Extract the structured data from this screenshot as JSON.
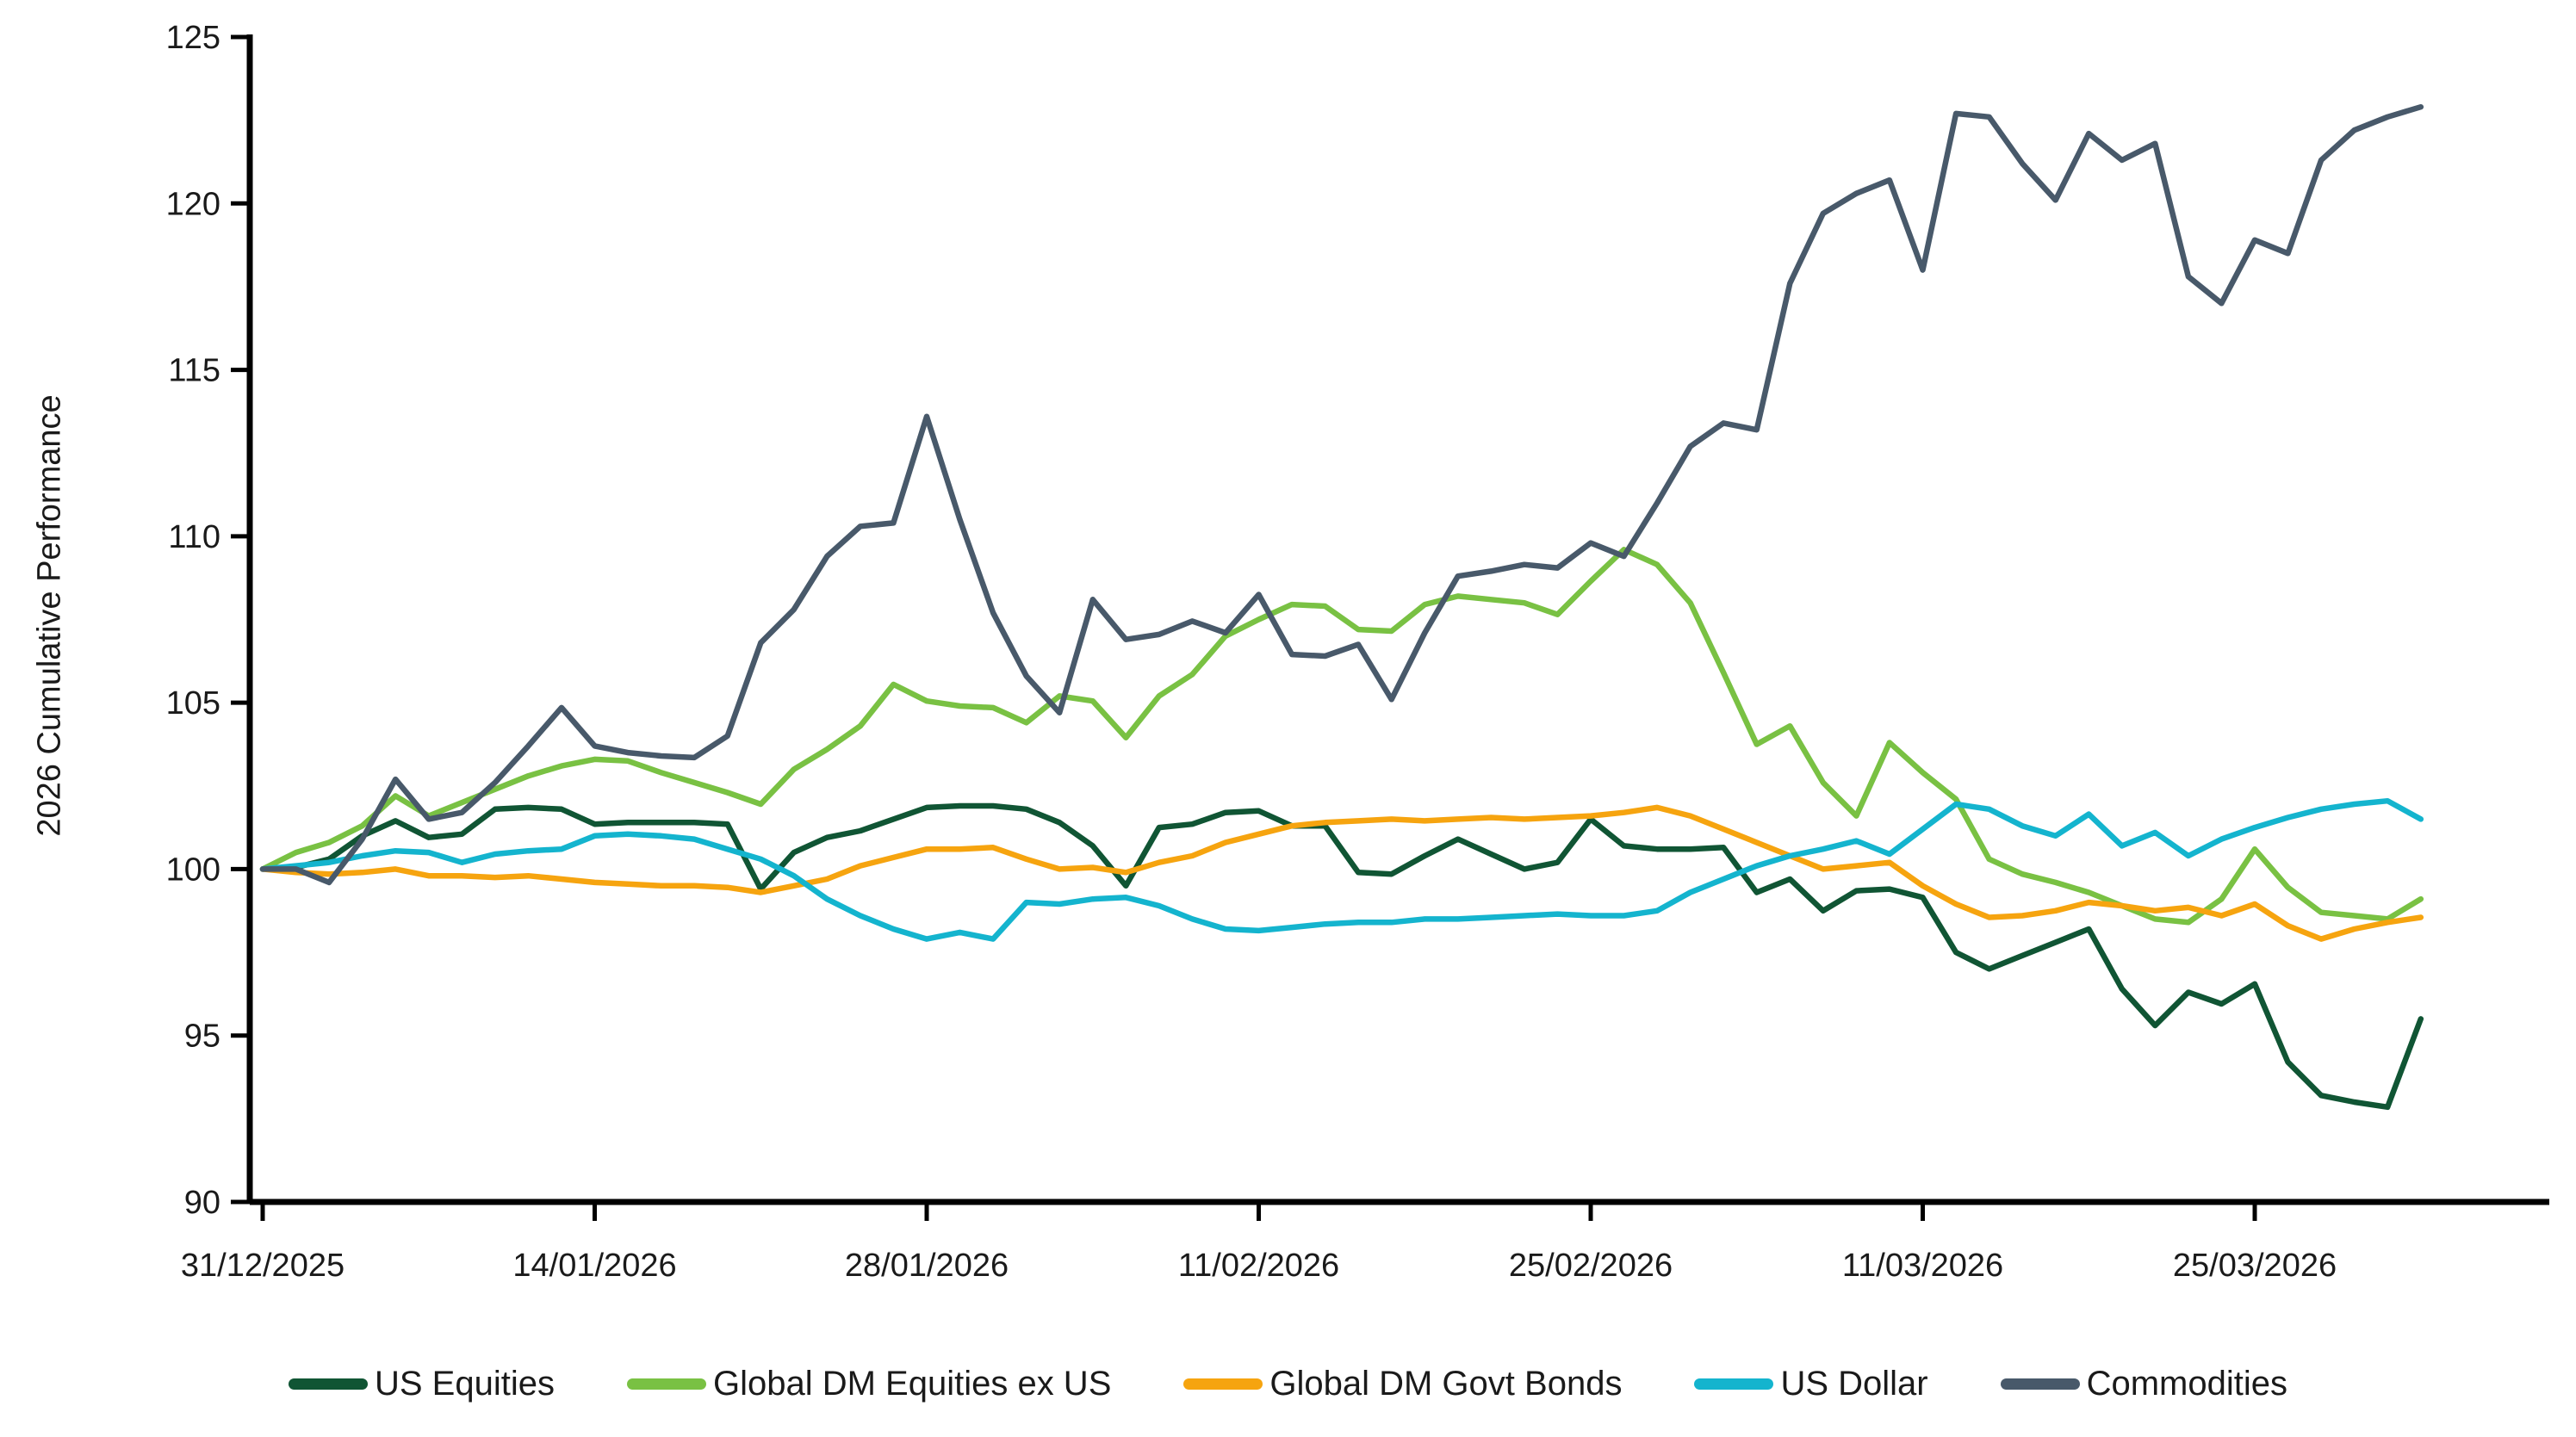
{
  "page": {
    "background": "#ffffff"
  },
  "chart_data": {
    "type": "line",
    "title": "",
    "xlabel": "",
    "ylabel": "2026 Cumulative Performance",
    "ylim": [
      90,
      125
    ],
    "yticks": [
      90,
      95,
      100,
      105,
      110,
      115,
      120,
      125
    ],
    "xtick_labels": [
      "31/12/2025",
      "14/01/2026",
      "28/01/2026",
      "11/02/2026",
      "25/02/2026",
      "11/03/2026",
      "25/03/2026"
    ],
    "xtick_indices": [
      0,
      10,
      20,
      30,
      40,
      50,
      60
    ],
    "grid": false,
    "legend_position": "bottom",
    "axis_color": "#000000",
    "dates": [
      "31/12/2025",
      "01/01/2026",
      "02/01/2026",
      "05/01/2026",
      "06/01/2026",
      "07/01/2026",
      "08/01/2026",
      "09/01/2026",
      "12/01/2026",
      "13/01/2026",
      "14/01/2026",
      "15/01/2026",
      "16/01/2026",
      "19/01/2026",
      "20/01/2026",
      "21/01/2026",
      "22/01/2026",
      "23/01/2026",
      "26/01/2026",
      "27/01/2026",
      "28/01/2026",
      "29/01/2026",
      "30/01/2026",
      "02/02/2026",
      "03/02/2026",
      "04/02/2026",
      "05/02/2026",
      "06/02/2026",
      "09/02/2026",
      "10/02/2026",
      "11/02/2026",
      "12/02/2026",
      "13/02/2026",
      "16/02/2026",
      "17/02/2026",
      "18/02/2026",
      "19/02/2026",
      "20/02/2026",
      "23/02/2026",
      "24/02/2026",
      "25/02/2026",
      "26/02/2026",
      "27/02/2026",
      "02/03/2026",
      "03/03/2026",
      "04/03/2026",
      "05/03/2026",
      "06/03/2026",
      "09/03/2026",
      "10/03/2026",
      "11/03/2026",
      "12/03/2026",
      "13/03/2026",
      "16/03/2026",
      "17/03/2026",
      "18/03/2026",
      "19/03/2026",
      "20/03/2026",
      "23/03/2026",
      "24/03/2026",
      "25/03/2026",
      "26/03/2026",
      "27/03/2026",
      "30/03/2026",
      "31/03/2026",
      "01/04/2026"
    ],
    "series": [
      {
        "name": "US Equities",
        "color": "#105534",
        "values": [
          100,
          100.05,
          100.3,
          101,
          101.45,
          100.95,
          101.05,
          101.8,
          101.85,
          101.8,
          101.35,
          101.4,
          101.4,
          101.4,
          101.35,
          99.4,
          100.5,
          100.95,
          101.15,
          101.5,
          101.85,
          101.9,
          101.9,
          101.8,
          101.4,
          100.7,
          99.5,
          101.25,
          101.35,
          101.7,
          101.75,
          101.3,
          101.3,
          99.9,
          99.85,
          100.4,
          100.9,
          100.45,
          100,
          100.2,
          101.5,
          100.7,
          100.6,
          100.6,
          100.65,
          99.3,
          99.7,
          98.75,
          99.35,
          99.4,
          99.15,
          97.5,
          97,
          97.4,
          97.8,
          98.2,
          96.4,
          95.3,
          96.3,
          95.95,
          96.55,
          94.2,
          93.2,
          93,
          92.85,
          95.5
        ]
      },
      {
        "name": "Global DM Equities ex US",
        "color": "#79C143",
        "values": [
          100,
          100.5,
          100.8,
          101.3,
          102.2,
          101.6,
          102,
          102.4,
          102.8,
          103.1,
          103.3,
          103.25,
          102.9,
          102.6,
          102.3,
          101.95,
          103,
          103.6,
          104.3,
          105.55,
          105.05,
          104.9,
          104.85,
          104.4,
          105.2,
          105.05,
          103.95,
          105.2,
          105.85,
          107,
          107.5,
          107.95,
          107.9,
          107.2,
          107.15,
          107.95,
          108.2,
          108.1,
          108,
          107.65,
          108.65,
          109.6,
          109.15,
          108,
          105.9,
          103.75,
          104.3,
          102.6,
          101.6,
          103.8,
          102.9,
          102.1,
          100.3,
          99.85,
          99.6,
          99.3,
          98.9,
          98.5,
          98.4,
          99.1,
          100.6,
          99.45,
          98.7,
          98.6,
          98.5,
          99.1
        ]
      },
      {
        "name": "Global DM Govt Bonds",
        "color": "#F6A40F",
        "values": [
          100,
          99.9,
          99.85,
          99.9,
          100,
          99.8,
          99.8,
          99.75,
          99.8,
          99.7,
          99.6,
          99.55,
          99.5,
          99.5,
          99.45,
          99.3,
          99.5,
          99.7,
          100.1,
          100.35,
          100.6,
          100.6,
          100.65,
          100.3,
          100,
          100.05,
          99.9,
          100.2,
          100.4,
          100.8,
          101.05,
          101.3,
          101.4,
          101.45,
          101.5,
          101.45,
          101.5,
          101.55,
          101.5,
          101.55,
          101.6,
          101.7,
          101.85,
          101.6,
          101.2,
          100.8,
          100.4,
          100,
          100.1,
          100.2,
          99.5,
          98.95,
          98.55,
          98.6,
          98.75,
          99,
          98.9,
          98.75,
          98.85,
          98.6,
          98.95,
          98.3,
          97.9,
          98.2,
          98.4,
          98.55
        ]
      },
      {
        "name": "US Dollar",
        "color": "#14B4CE",
        "values": [
          100,
          100.1,
          100.2,
          100.4,
          100.55,
          100.5,
          100.2,
          100.45,
          100.55,
          100.6,
          101,
          101.05,
          101,
          100.9,
          100.6,
          100.3,
          99.8,
          99.1,
          98.6,
          98.2,
          97.9,
          98.1,
          97.9,
          99,
          98.95,
          99.1,
          99.15,
          98.9,
          98.5,
          98.2,
          98.15,
          98.25,
          98.35,
          98.4,
          98.4,
          98.5,
          98.5,
          98.55,
          98.6,
          98.65,
          98.6,
          98.6,
          98.75,
          99.3,
          99.7,
          100.1,
          100.4,
          100.6,
          100.85,
          100.45,
          101.2,
          101.95,
          101.8,
          101.3,
          101,
          101.65,
          100.7,
          101.1,
          100.4,
          100.9,
          101.25,
          101.55,
          101.8,
          101.95,
          102.05,
          101.5
        ]
      },
      {
        "name": "Commodities",
        "color": "#48596A",
        "values": [
          100,
          100,
          99.6,
          100.9,
          102.7,
          101.5,
          101.7,
          102.6,
          103.7,
          104.85,
          103.7,
          103.5,
          103.4,
          103.35,
          104,
          106.8,
          107.8,
          109.4,
          110.3,
          110.4,
          113.6,
          110.5,
          107.7,
          105.8,
          104.7,
          108.1,
          106.9,
          107.05,
          107.45,
          107.1,
          108.25,
          106.45,
          106.4,
          106.75,
          105.1,
          107.1,
          108.8,
          108.95,
          109.15,
          109.05,
          109.8,
          109.4,
          111,
          112.7,
          113.4,
          113.2,
          117.6,
          119.7,
          120.3,
          120.7,
          118,
          122.7,
          122.6,
          121.2,
          120.1,
          122.1,
          121.3,
          121.8,
          117.8,
          117,
          118.9,
          118.5,
          121.3,
          122.2,
          122.6,
          122.9
        ]
      }
    ]
  }
}
